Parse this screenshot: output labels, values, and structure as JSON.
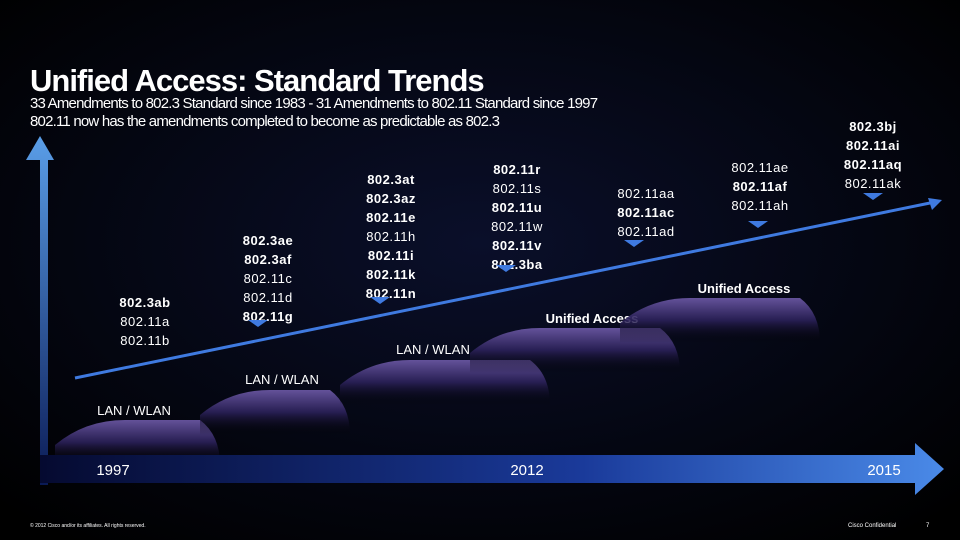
{
  "header": {
    "title": "Unified Access: Standard Trends",
    "lines": [
      "33 Amendments to 802.3 Standard since 1983 - 31 Amendments to 802.11 Standard since 1997",
      "802.11 now has the amendments completed to become as predictable as 802.3"
    ]
  },
  "groups": [
    {
      "items": [
        {
          "text": "802.3ab",
          "bold": true
        },
        {
          "text": "802.11a",
          "bold": false
        },
        {
          "text": "802.11b",
          "bold": false
        }
      ]
    },
    {
      "items": [
        {
          "text": "802.3ae",
          "bold": true
        },
        {
          "text": "802.3af",
          "bold": true
        },
        {
          "text": "802.11c",
          "bold": false
        },
        {
          "text": "802.11d",
          "bold": false
        },
        {
          "text": "802.11g",
          "bold": true
        }
      ]
    },
    {
      "items": [
        {
          "text": "802.3at",
          "bold": true
        },
        {
          "text": "802.3az",
          "bold": true
        },
        {
          "text": "802.11e",
          "bold": true
        },
        {
          "text": "802.11h",
          "bold": false
        },
        {
          "text": "802.11i",
          "bold": true
        },
        {
          "text": "802.11k",
          "bold": true
        },
        {
          "text": "802.11n",
          "bold": true
        }
      ]
    },
    {
      "items": [
        {
          "text": "802.11r",
          "bold": true
        },
        {
          "text": "802.11s",
          "bold": false
        },
        {
          "text": "802.11u",
          "bold": true
        },
        {
          "text": "802.11w",
          "bold": false
        },
        {
          "text": "802.11v",
          "bold": true
        },
        {
          "text": "802.3ba",
          "bold": true
        }
      ]
    },
    {
      "items": [
        {
          "text": "802.11aa",
          "bold": false
        },
        {
          "text": "802.11ac",
          "bold": true
        },
        {
          "text": "802.11ad",
          "bold": false
        }
      ]
    },
    {
      "items": [
        {
          "text": "802.11ae",
          "bold": false
        },
        {
          "text": "802.11af",
          "bold": true
        },
        {
          "text": "802.11ah",
          "bold": false
        }
      ]
    },
    {
      "items": [
        {
          "text": "802.3bj",
          "bold": true
        },
        {
          "text": "802.11ai",
          "bold": true
        },
        {
          "text": "802.11aq",
          "bold": true
        },
        {
          "text": "802.11ak",
          "bold": false
        }
      ]
    }
  ],
  "waves": [
    "LAN / WLAN",
    "LAN / WLAN",
    "LAN / WLAN",
    "Unified Access",
    "Unified Access"
  ],
  "timeline": [
    "1997",
    "2012",
    "2015"
  ],
  "footer": {
    "copyright": "© 2012 Cisco and/or its affiliates. All rights reserved.",
    "confidential": "Cisco Confidential",
    "page": "7"
  }
}
